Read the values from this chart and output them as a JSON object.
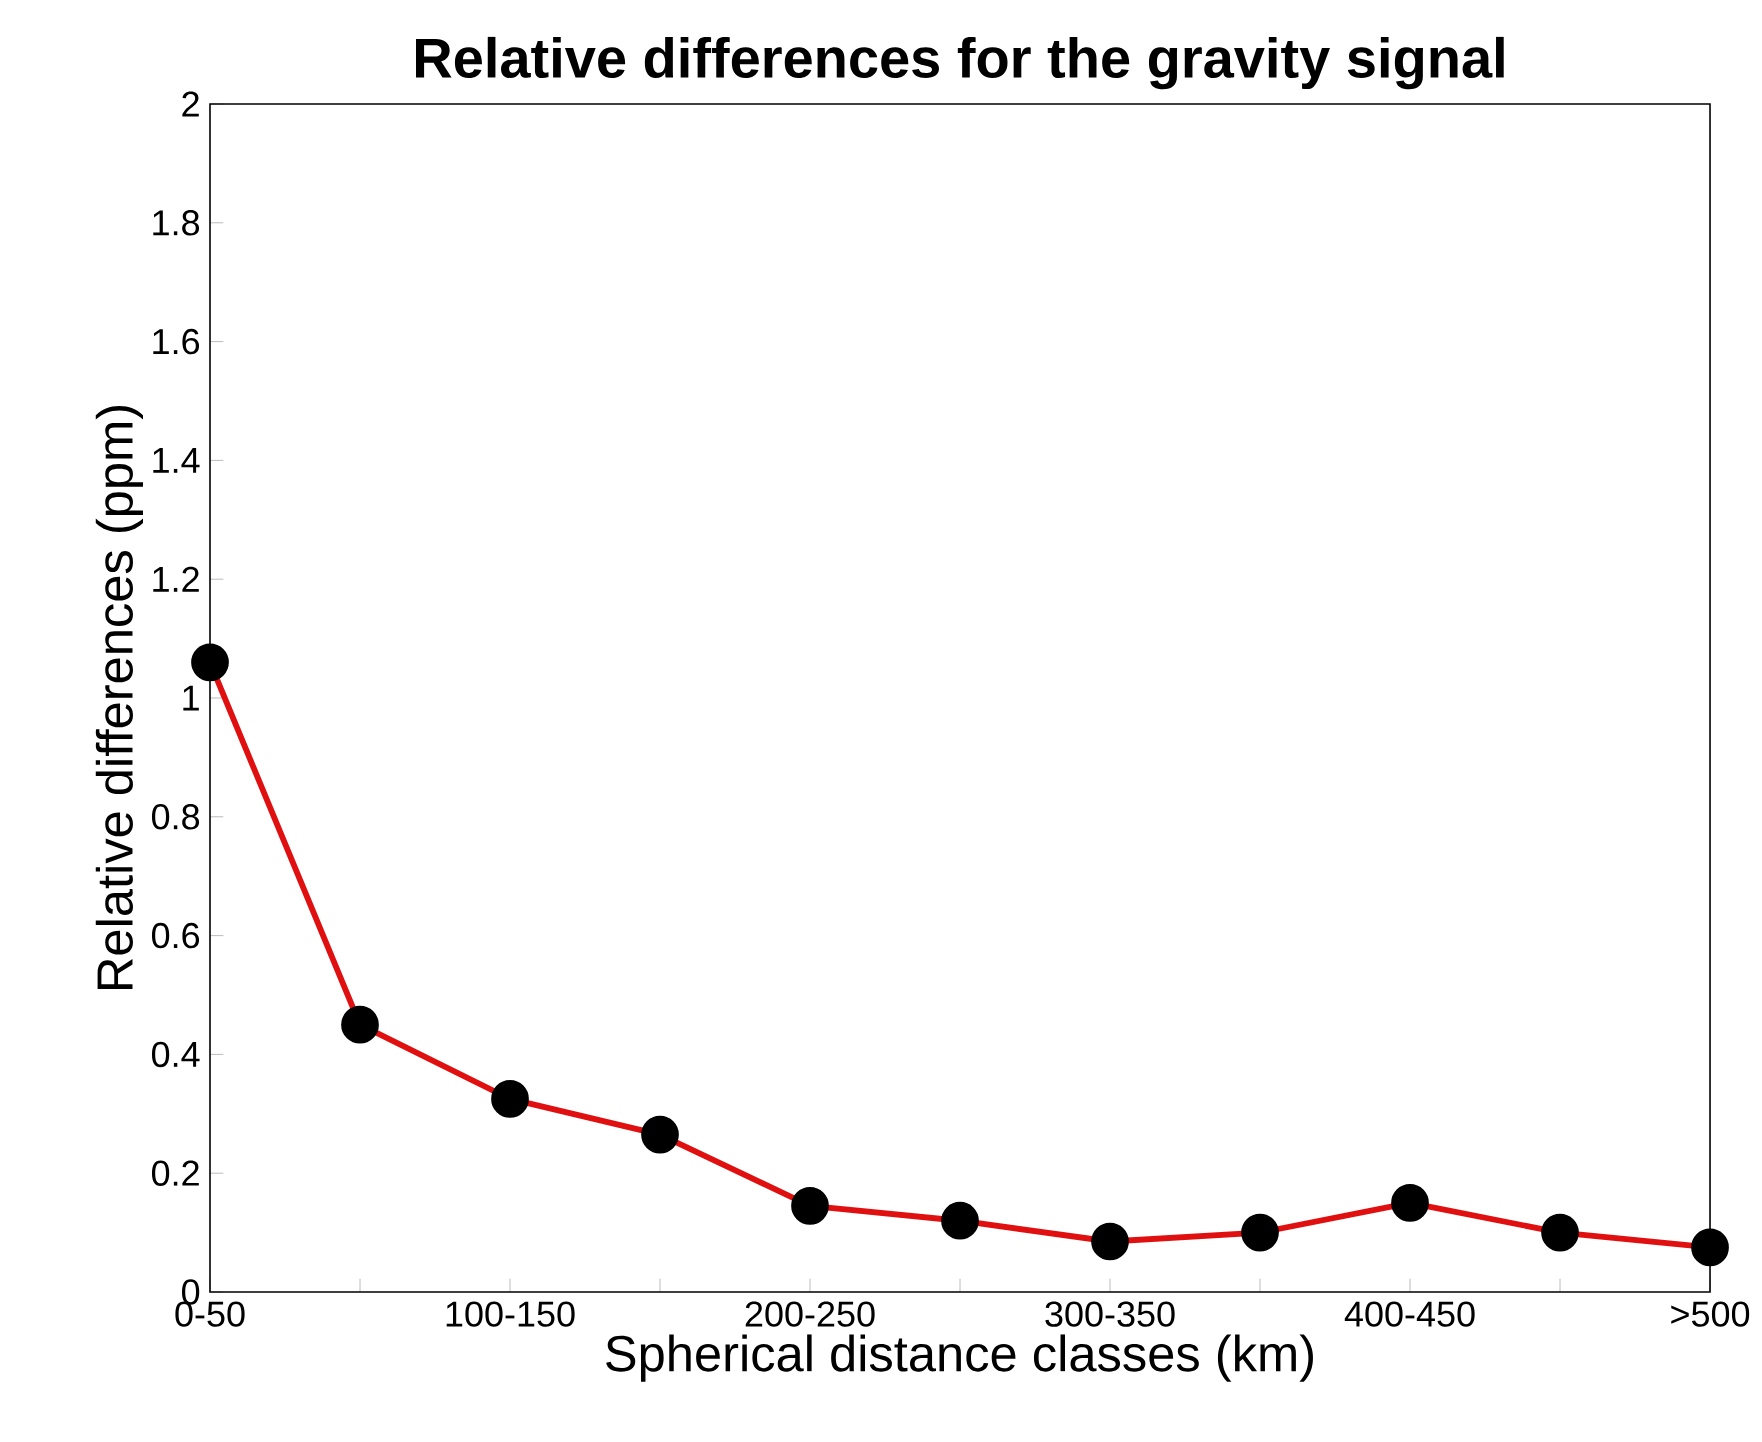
{
  "chart_data": {
    "type": "line",
    "title": "Relative differences for the gravity signal",
    "xlabel": "Spherical distance classes (km)",
    "ylabel": "Relative differences (ppm)",
    "categories": [
      "0-50",
      null,
      "100-150",
      null,
      "200-250",
      null,
      "300-350",
      null,
      "400-450",
      null,
      ">500"
    ],
    "series": [
      {
        "color": "#e01010",
        "values": [
          1.06,
          0.45,
          0.325,
          0.265,
          0.145,
          0.12,
          0.085,
          0.1,
          0.15,
          0.1,
          0.075
        ]
      }
    ],
    "ylim": [
      0,
      2
    ],
    "yticks": [
      0,
      0.2,
      0.4,
      0.6,
      0.8,
      1,
      1.2,
      1.4,
      1.6,
      1.8,
      2
    ],
    "marker": "circle",
    "line_style": "solid"
  }
}
